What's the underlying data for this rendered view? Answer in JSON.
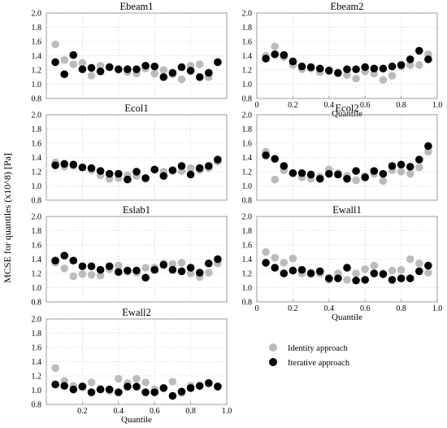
{
  "figure": {
    "ylabel": "MCSE for quantiles (x10^8) [Pa]",
    "colors": {
      "identity": "#bbbbbb",
      "iterative": "#000000"
    }
  },
  "legend": {
    "items": [
      {
        "label": "Identity approach",
        "color": "#bbbbbb"
      },
      {
        "label": "Iterative approach",
        "color": "#000000"
      }
    ]
  },
  "chart_data": [
    {
      "type": "scatter",
      "title": "Ebeam1",
      "xlabel": "",
      "ylim": [
        0.8,
        2.0
      ],
      "yticks": [
        "0.8",
        "1.0",
        "1.2",
        "1.4",
        "1.6",
        "1.8",
        "2.0"
      ],
      "xticks": [],
      "x": [
        0.05,
        0.1,
        0.15,
        0.2,
        0.25,
        0.3,
        0.35,
        0.4,
        0.45,
        0.5,
        0.55,
        0.6,
        0.65,
        0.7,
        0.75,
        0.8,
        0.85,
        0.9,
        0.95
      ],
      "series": [
        {
          "name": "Identity approach",
          "values": [
            1.56,
            1.34,
            1.28,
            1.3,
            1.12,
            1.26,
            1.24,
            1.2,
            1.17,
            1.15,
            1.22,
            1.15,
            1.2,
            1.14,
            1.07,
            1.26,
            1.28,
            1.1,
            1.31
          ]
        },
        {
          "name": "Iterative approach",
          "values": [
            1.31,
            1.14,
            1.41,
            1.21,
            1.23,
            1.18,
            1.24,
            1.21,
            1.21,
            1.21,
            1.26,
            1.25,
            1.1,
            1.16,
            1.24,
            1.19,
            1.1,
            1.16,
            1.31
          ]
        }
      ]
    },
    {
      "type": "scatter",
      "title": "Ebeam2",
      "xlabel": "Quantile",
      "ylim": [
        0.8,
        2.0
      ],
      "yticks": [
        "0.8",
        "1.0",
        "1.2",
        "1.4",
        "1.6",
        "1.8",
        "2.0"
      ],
      "xticks": [
        "0",
        "0.2",
        "0.4",
        "0.6",
        "0.8",
        "1.0"
      ],
      "x": [
        0.05,
        0.1,
        0.15,
        0.2,
        0.25,
        0.3,
        0.35,
        0.4,
        0.45,
        0.5,
        0.55,
        0.6,
        0.65,
        0.7,
        0.75,
        0.8,
        0.85,
        0.9,
        0.95
      ],
      "series": [
        {
          "name": "Identity approach",
          "values": [
            1.4,
            1.53,
            1.38,
            1.27,
            1.21,
            1.22,
            1.17,
            1.2,
            1.15,
            1.13,
            1.08,
            1.18,
            1.15,
            1.06,
            1.12,
            1.25,
            1.27,
            1.27,
            1.42
          ]
        },
        {
          "name": "Iterative approach",
          "values": [
            1.36,
            1.42,
            1.41,
            1.32,
            1.25,
            1.24,
            1.22,
            1.19,
            1.16,
            1.21,
            1.21,
            1.24,
            1.22,
            1.22,
            1.25,
            1.27,
            1.35,
            1.47,
            1.35
          ]
        }
      ]
    },
    {
      "type": "scatter",
      "title": "Ecol1",
      "xlabel": "",
      "ylim": [
        0.8,
        2.0
      ],
      "yticks": [
        "0.8",
        "1.0",
        "1.2",
        "1.4",
        "1.6",
        "1.8",
        "2.0"
      ],
      "xticks": [],
      "x": [
        0.05,
        0.1,
        0.15,
        0.2,
        0.25,
        0.3,
        0.35,
        0.4,
        0.45,
        0.5,
        0.55,
        0.6,
        0.65,
        0.7,
        0.75,
        0.8,
        0.85,
        0.9,
        0.95
      ],
      "series": [
        {
          "name": "Identity approach",
          "values": [
            1.33,
            1.27,
            1.28,
            1.26,
            1.22,
            1.15,
            1.1,
            1.11,
            1.15,
            1.14,
            1.1,
            1.23,
            1.2,
            1.21,
            1.21,
            1.25,
            1.22,
            1.25,
            1.34
          ]
        },
        {
          "name": "Iterative approach",
          "values": [
            1.29,
            1.31,
            1.3,
            1.26,
            1.25,
            1.21,
            1.17,
            1.17,
            1.09,
            1.2,
            1.11,
            1.23,
            1.14,
            1.22,
            1.28,
            1.16,
            1.25,
            1.28,
            1.37
          ]
        }
      ]
    },
    {
      "type": "scatter",
      "title": "Ecol2",
      "xlabel": "",
      "ylim": [
        0.8,
        2.0
      ],
      "yticks": [
        "0.8",
        "1.0",
        "1.2",
        "1.4",
        "1.6",
        "1.8",
        "2.0"
      ],
      "xticks": [],
      "x": [
        0.05,
        0.1,
        0.15,
        0.2,
        0.25,
        0.3,
        0.35,
        0.4,
        0.45,
        0.5,
        0.55,
        0.6,
        0.65,
        0.7,
        0.75,
        0.8,
        0.85,
        0.9,
        0.95
      ],
      "series": [
        {
          "name": "Identity approach",
          "values": [
            1.48,
            1.09,
            1.22,
            1.18,
            1.12,
            1.1,
            1.13,
            1.23,
            1.18,
            1.14,
            1.08,
            1.14,
            1.17,
            1.07,
            1.22,
            1.2,
            1.17,
            1.26,
            1.48
          ]
        },
        {
          "name": "Iterative approach",
          "values": [
            1.43,
            1.38,
            1.28,
            1.18,
            1.18,
            1.16,
            1.1,
            1.17,
            1.16,
            1.1,
            1.21,
            1.12,
            1.21,
            1.17,
            1.28,
            1.3,
            1.27,
            1.37,
            1.56
          ]
        }
      ]
    },
    {
      "type": "scatter",
      "title": "Eslab1",
      "xlabel": "",
      "ylim": [
        0.8,
        2.0
      ],
      "yticks": [
        "0.8",
        "1.0",
        "1.2",
        "1.4",
        "1.6",
        "1.8",
        "2.0"
      ],
      "xticks": [],
      "x": [
        0.05,
        0.1,
        0.15,
        0.2,
        0.25,
        0.3,
        0.35,
        0.4,
        0.45,
        0.5,
        0.55,
        0.6,
        0.65,
        0.7,
        0.75,
        0.8,
        0.85,
        0.9,
        0.95
      ],
      "series": [
        {
          "name": "Identity approach",
          "values": [
            1.35,
            1.27,
            1.16,
            1.19,
            1.18,
            1.17,
            1.26,
            1.31,
            1.22,
            1.21,
            1.28,
            1.28,
            1.34,
            1.33,
            1.35,
            1.2,
            1.15,
            1.21,
            1.34
          ]
        },
        {
          "name": "Iterative approach",
          "values": [
            1.38,
            1.45,
            1.38,
            1.3,
            1.3,
            1.25,
            1.3,
            1.22,
            1.24,
            1.24,
            1.14,
            1.25,
            1.32,
            1.25,
            1.23,
            1.28,
            1.21,
            1.34,
            1.4
          ]
        }
      ]
    },
    {
      "type": "scatter",
      "title": "Ewall1",
      "xlabel": "Quantile",
      "ylim": [
        0.8,
        2.0
      ],
      "yticks": [
        "0.8",
        "1.0",
        "1.2",
        "1.4",
        "1.6",
        "1.8",
        "2.0"
      ],
      "xticks": [
        "0",
        "0.2",
        "0.4",
        "0.6",
        "0.8",
        "1.0"
      ],
      "x": [
        0.05,
        0.1,
        0.15,
        0.2,
        0.25,
        0.3,
        0.35,
        0.4,
        0.45,
        0.5,
        0.55,
        0.6,
        0.65,
        0.7,
        0.75,
        0.8,
        0.85,
        0.9,
        0.95
      ],
      "series": [
        {
          "name": "Identity approach",
          "values": [
            1.5,
            1.42,
            1.35,
            1.41,
            1.2,
            1.21,
            1.2,
            1.11,
            1.2,
            1.11,
            1.2,
            1.26,
            1.31,
            1.2,
            1.24,
            1.25,
            1.4,
            1.34,
            1.21
          ]
        },
        {
          "name": "Iterative approach",
          "values": [
            1.35,
            1.28,
            1.2,
            1.24,
            1.25,
            1.2,
            1.23,
            1.13,
            1.13,
            1.28,
            1.1,
            1.11,
            1.2,
            1.19,
            1.11,
            1.13,
            1.13,
            1.23,
            1.31
          ]
        }
      ]
    },
    {
      "type": "scatter",
      "title": "Ewall2",
      "xlabel": "Quantile",
      "ylim": [
        0.8,
        2.0
      ],
      "yticks": [
        "0.8",
        "1.0",
        "1.2",
        "1.4",
        "1.6",
        "1.8",
        "2.0"
      ],
      "xticks": [
        "0.2",
        "0.4",
        "0.6",
        "0.8",
        "1.0"
      ],
      "x": [
        0.05,
        0.1,
        0.15,
        0.2,
        0.25,
        0.3,
        0.35,
        0.4,
        0.45,
        0.5,
        0.55,
        0.6,
        0.65,
        0.7,
        0.75,
        0.8,
        0.85,
        0.9,
        0.95
      ],
      "series": [
        {
          "name": "Identity approach",
          "values": [
            1.31,
            1.13,
            1.06,
            1.06,
            1.11,
            1.02,
            0.99,
            1.16,
            1.1,
            1.16,
            1.11,
            1.01,
            1.03,
            1.12,
            0.96,
            1.06,
            1.06,
            1.09,
            1.06
          ]
        },
        {
          "name": "Iterative approach",
          "values": [
            1.08,
            1.06,
            1.01,
            1.05,
            0.97,
            1.01,
            1.01,
            0.97,
            1.05,
            1.05,
            0.97,
            0.97,
            1.03,
            0.92,
            0.98,
            1.03,
            1.06,
            1.1,
            1.05
          ]
        }
      ]
    }
  ]
}
